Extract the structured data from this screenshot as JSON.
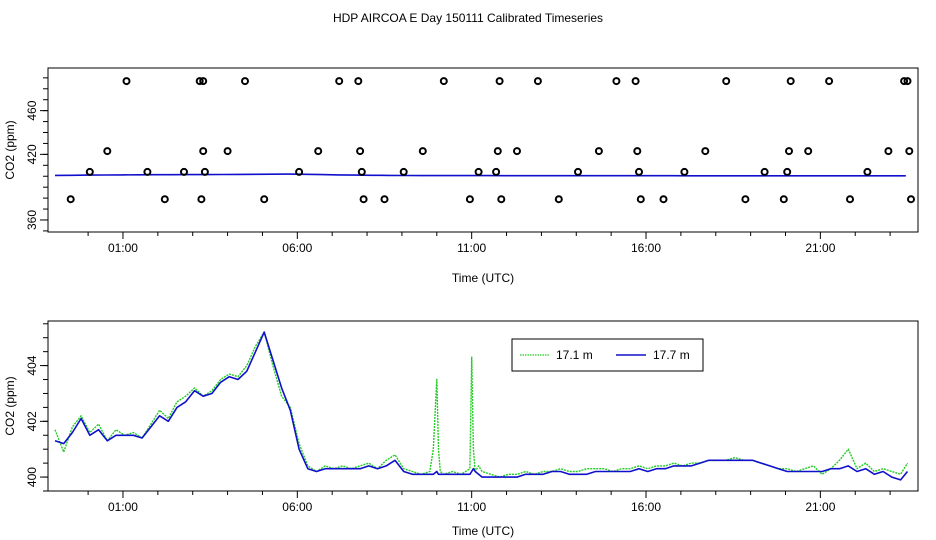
{
  "title": "HDP AIRCOA E  Day 150111  Calibrated Timeseries",
  "colors": {
    "green": "#22cc22",
    "blue": "#1010cc",
    "black": "#000000"
  },
  "chart_data": [
    {
      "type": "scatter",
      "xlabel": "Time (UTC)",
      "ylabel": "CO2 (ppm)",
      "x_ticks": [
        "01:00",
        "06:00",
        "11:00",
        "16:00",
        "21:00"
      ],
      "x_tick_hours": [
        1,
        6,
        11,
        16,
        21
      ],
      "y_ticks": [
        360,
        420,
        460
      ],
      "y_tick_labels": [
        "360",
        "420",
        "460"
      ],
      "xlim": [
        -1.15,
        23.8
      ],
      "ylim": [
        349,
        499
      ],
      "grid": false,
      "calibration_points": {
        "hours": [
          -0.5,
          0.05,
          0.55,
          1.1,
          1.7,
          2.2,
          2.75,
          3.2,
          3.25,
          3.3,
          3.35,
          3.3,
          4.0,
          4.5,
          5.05,
          6.05,
          6.6,
          7.2,
          7.75,
          7.8,
          7.85,
          7.9,
          8.5,
          9.05,
          9.6,
          10.2,
          10.95,
          11.2,
          11.7,
          11.75,
          11.8,
          11.85,
          12.3,
          12.9,
          13.5,
          14.05,
          14.65,
          15.15,
          15.7,
          15.75,
          15.8,
          15.85,
          16.5,
          17.1,
          17.7,
          18.3,
          18.85,
          19.4,
          19.95,
          20.05,
          20.1,
          20.15,
          20.65,
          21.25,
          21.85,
          22.35,
          22.95,
          23.4,
          23.5,
          23.55,
          23.6
        ],
        "values": [
          379,
          404,
          423,
          487,
          404,
          379,
          404,
          487,
          379,
          423,
          404,
          487,
          423,
          487,
          379,
          404,
          423,
          487,
          487,
          423,
          404,
          379,
          379,
          404,
          423,
          487,
          379,
          404,
          404,
          423,
          487,
          379,
          423,
          487,
          379,
          404,
          423,
          487,
          487,
          423,
          404,
          379,
          379,
          404,
          423,
          487,
          379,
          404,
          379,
          404,
          423,
          487,
          423,
          487,
          379,
          404,
          423,
          487,
          487,
          423,
          379
        ]
      },
      "series": [
        {
          "name": "",
          "color": "blue",
          "values": [
            400.8,
            400.9,
            401.0,
            401.1,
            401.2,
            401.3,
            401.4,
            401.4,
            401.5,
            401.5,
            401.6,
            401.7,
            401.8,
            401.9,
            402.0,
            401.8,
            401.5,
            401.2,
            401.0,
            400.9,
            400.8,
            400.7,
            400.6,
            400.6,
            400.6,
            400.6,
            400.6,
            400.5,
            400.5,
            400.5,
            400.5,
            400.5,
            400.5,
            400.5,
            400.5,
            400.5,
            400.5,
            400.5,
            400.4,
            400.4,
            400.4,
            400.4,
            400.4,
            400.4,
            400.4,
            400.4,
            400.4,
            400.4,
            400.4,
            400.4,
            400.4,
            400.4
          ]
        }
      ]
    },
    {
      "type": "line",
      "xlabel": "Time (UTC)",
      "ylabel": "CO2 (ppm)",
      "x_ticks": [
        "01:00",
        "06:00",
        "11:00",
        "16:00",
        "21:00"
      ],
      "x_tick_hours": [
        1,
        6,
        11,
        16,
        21
      ],
      "y_ticks": [
        400,
        402,
        404
      ],
      "y_tick_labels": [
        "400",
        "402",
        "404"
      ],
      "xlim": [
        -1.15,
        23.8
      ],
      "ylim": [
        399.5,
        405.6
      ],
      "grid": false,
      "legend": {
        "position": "top-center"
      },
      "x": [
        -0.95,
        -0.7,
        -0.45,
        -0.2,
        0.05,
        0.3,
        0.55,
        0.8,
        1.05,
        1.3,
        1.55,
        1.8,
        2.05,
        2.3,
        2.55,
        2.8,
        3.05,
        3.3,
        3.55,
        3.8,
        4.05,
        4.3,
        4.55,
        4.8,
        5.05,
        5.3,
        5.55,
        5.8,
        6.05,
        6.3,
        6.55,
        6.8,
        7.05,
        7.3,
        7.55,
        7.8,
        8.05,
        8.3,
        8.55,
        8.8,
        9.05,
        9.3,
        9.55,
        9.8,
        9.9,
        10.0,
        10.05,
        10.1,
        10.2,
        10.45,
        10.7,
        10.95,
        11.0,
        11.05,
        11.1,
        11.2,
        11.3,
        11.55,
        11.8,
        12.05,
        12.3,
        12.55,
        12.8,
        13.05,
        13.3,
        13.55,
        13.8,
        14.05,
        14.3,
        14.55,
        14.8,
        15.05,
        15.3,
        15.55,
        15.8,
        16.05,
        16.3,
        16.55,
        16.8,
        17.05,
        17.3,
        17.55,
        17.8,
        18.05,
        18.3,
        18.55,
        18.8,
        19.05,
        19.3,
        19.55,
        19.8,
        20.05,
        20.3,
        20.55,
        20.8,
        21.05,
        21.3,
        21.55,
        21.8,
        22.05,
        22.3,
        22.55,
        22.8,
        23.05,
        23.3,
        23.5
      ],
      "series": [
        {
          "name": "17.1 m",
          "color": "green",
          "values": [
            401.7,
            400.9,
            401.8,
            402.2,
            401.6,
            401.9,
            401.3,
            401.7,
            401.5,
            401.6,
            401.4,
            401.9,
            402.4,
            402.1,
            402.7,
            402.9,
            403.2,
            402.9,
            403.1,
            403.5,
            403.7,
            403.6,
            404.0,
            404.7,
            405.2,
            404.0,
            402.9,
            402.5,
            401.2,
            400.4,
            400.2,
            400.4,
            400.3,
            400.4,
            400.3,
            400.4,
            400.5,
            400.3,
            400.6,
            400.8,
            400.3,
            400.2,
            400.1,
            400.2,
            401.0,
            403.5,
            401.0,
            400.2,
            400.1,
            400.2,
            400.1,
            400.3,
            404.3,
            401.0,
            400.2,
            400.4,
            400.2,
            400.1,
            400.0,
            400.1,
            400.1,
            400.2,
            400.1,
            400.2,
            400.2,
            400.3,
            400.2,
            400.2,
            400.3,
            400.3,
            400.3,
            400.2,
            400.3,
            400.3,
            400.4,
            400.3,
            400.4,
            400.4,
            400.5,
            400.4,
            400.5,
            400.5,
            400.6,
            400.6,
            400.6,
            400.7,
            400.6,
            400.6,
            400.5,
            400.4,
            400.3,
            400.3,
            400.2,
            400.3,
            400.4,
            400.1,
            400.3,
            400.6,
            401.0,
            400.3,
            400.5,
            400.2,
            400.3,
            400.2,
            400.1,
            400.5
          ]
        },
        {
          "name": "17.7 m",
          "color": "blue",
          "values": [
            401.3,
            401.2,
            401.6,
            402.1,
            401.5,
            401.7,
            401.3,
            401.5,
            401.5,
            401.5,
            401.4,
            401.8,
            402.2,
            402.0,
            402.5,
            402.7,
            403.1,
            402.9,
            403.0,
            403.4,
            403.6,
            403.5,
            403.8,
            404.5,
            405.2,
            404.2,
            403.2,
            402.4,
            401.0,
            400.3,
            400.2,
            400.3,
            400.3,
            400.3,
            400.3,
            400.3,
            400.4,
            400.3,
            400.4,
            400.6,
            400.2,
            400.1,
            400.1,
            400.1,
            400.1,
            400.2,
            400.1,
            400.1,
            400.1,
            400.1,
            400.1,
            400.1,
            400.2,
            400.3,
            400.2,
            400.1,
            400.0,
            400.0,
            400.0,
            400.0,
            400.0,
            400.1,
            400.1,
            400.1,
            400.2,
            400.2,
            400.1,
            400.1,
            400.1,
            400.2,
            400.2,
            400.2,
            400.2,
            400.2,
            400.3,
            400.2,
            400.3,
            400.3,
            400.4,
            400.4,
            400.4,
            400.5,
            400.6,
            400.6,
            400.6,
            400.6,
            400.6,
            400.6,
            400.5,
            400.4,
            400.3,
            400.2,
            400.2,
            400.2,
            400.2,
            400.2,
            400.3,
            400.3,
            400.4,
            400.2,
            400.3,
            400.1,
            400.2,
            400.0,
            399.9,
            400.2
          ]
        }
      ]
    }
  ]
}
